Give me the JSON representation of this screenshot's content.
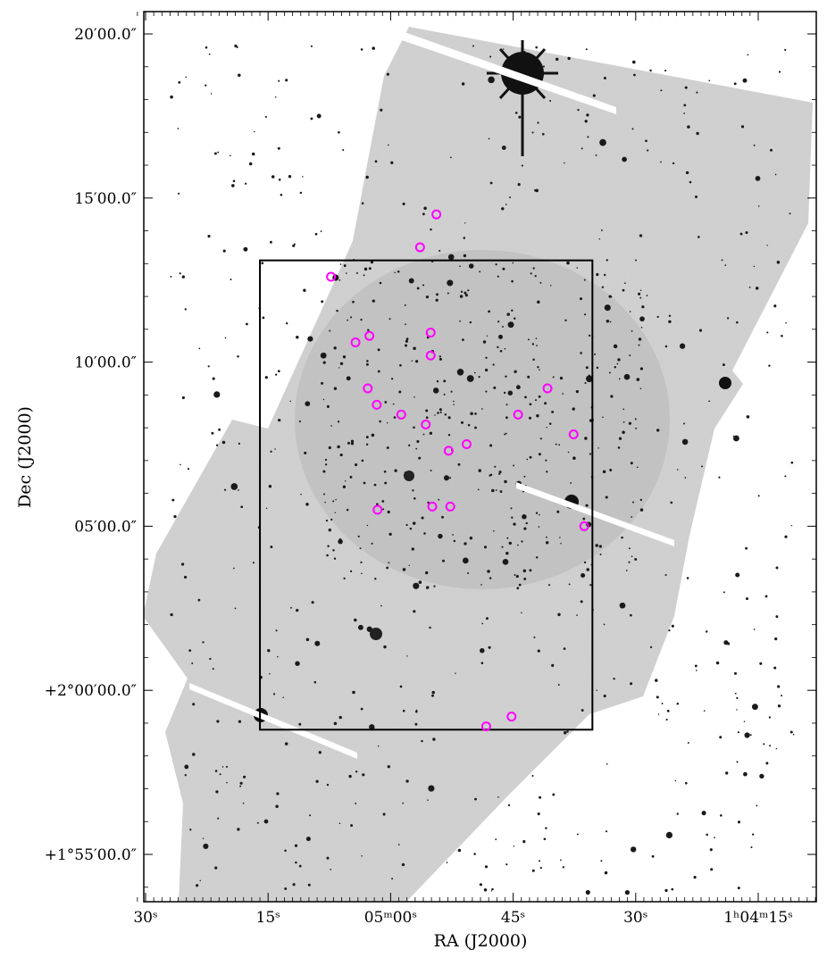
{
  "chart_data": {
    "type": "scatter",
    "title": "",
    "xlabel": "RA (J2000)",
    "ylabel": "Dec (J2000)",
    "x_unit": "seconds of RA (1h04m15s .. 1h05m30s)",
    "y_unit": "arcmin offset from +2°00′00″",
    "xlim": [
      31.3,
      11.0
    ],
    "ylim": [
      -6.5,
      20.7
    ],
    "x_ticks": [
      {
        "value": 30,
        "label": "30ˢ"
      },
      {
        "value": 15,
        "label": "15ˢ"
      },
      {
        "value": 0,
        "label": "05ᵐ00ˢ"
      },
      {
        "value": -15,
        "label": "45ˢ"
      },
      {
        "value": -30,
        "label": "30ˢ"
      },
      {
        "value": -45,
        "label": "1ʰ04ᵐ15ˢ"
      }
    ],
    "y_ticks": [
      {
        "value": 20,
        "label": "20′00.0″"
      },
      {
        "value": 15,
        "label": "15′00.0″"
      },
      {
        "value": 10,
        "label": "10′00.0″"
      },
      {
        "value": 5,
        "label": "05′00.0″"
      },
      {
        "value": 0,
        "label": "+2°00′00.0″"
      },
      {
        "value": -5,
        "label": "+1°55′00.0″"
      }
    ],
    "grid": false,
    "image": "inverted greyscale star-field mosaic",
    "field_box": {
      "ra": [
        16.0,
        -24.7
      ],
      "dec": [
        -1.2,
        13.1
      ]
    },
    "markers_color": "#ff00ff",
    "markers": [
      {
        "ra": -5.6,
        "dec": 14.5
      },
      {
        "ra": -3.6,
        "dec": 13.5
      },
      {
        "ra": 7.3,
        "dec": 12.6
      },
      {
        "ra": 4.3,
        "dec": 10.6
      },
      {
        "ra": 2.6,
        "dec": 10.8
      },
      {
        "ra": -4.9,
        "dec": 10.9
      },
      {
        "ra": -4.9,
        "dec": 10.2
      },
      {
        "ra": 2.8,
        "dec": 9.2
      },
      {
        "ra": 1.7,
        "dec": 8.7
      },
      {
        "ra": -1.3,
        "dec": 8.4
      },
      {
        "ra": -4.3,
        "dec": 8.1
      },
      {
        "ra": -7.1,
        "dec": 7.3
      },
      {
        "ra": -9.3,
        "dec": 7.5
      },
      {
        "ra": -15.6,
        "dec": 8.4
      },
      {
        "ra": -19.2,
        "dec": 9.2
      },
      {
        "ra": -22.4,
        "dec": 7.8
      },
      {
        "ra": -23.7,
        "dec": 5.0
      },
      {
        "ra": 1.6,
        "dec": 5.5
      },
      {
        "ra": -5.1,
        "dec": 5.6
      },
      {
        "ra": -7.3,
        "dec": 5.6
      },
      {
        "ra": -11.7,
        "dec": -1.1
      },
      {
        "ra": -14.8,
        "dec": -0.8
      }
    ]
  }
}
